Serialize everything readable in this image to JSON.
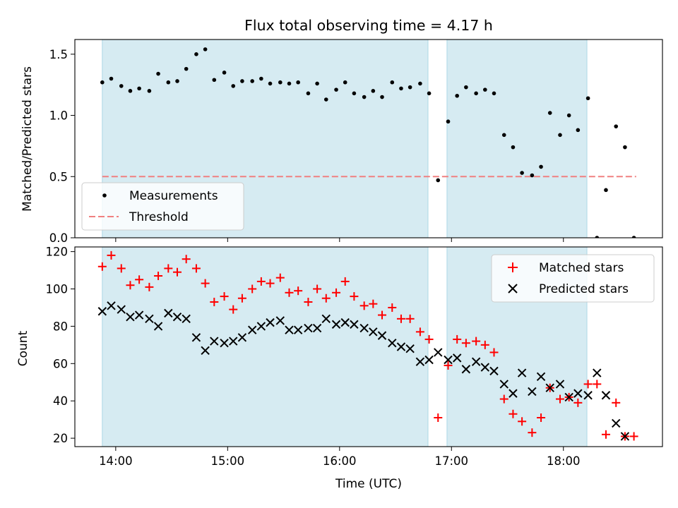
{
  "title": "Flux total observing time = 4.17 h",
  "colors": {
    "shade": "#add8e6",
    "measurement": "#000000",
    "threshold": "#f08080",
    "matched": "#ff0000",
    "predicted": "#000000"
  },
  "chart_data": [
    {
      "type": "scatter",
      "ylabel": "Matched/Predicted stars",
      "ylim": [
        0,
        1.62
      ],
      "yticks": [
        0.0,
        0.5,
        1.0,
        1.5
      ],
      "ytick_labels": [
        "0.0",
        "0.5",
        "1.0",
        "1.5"
      ],
      "xlim": [
        13.635,
        18.885
      ],
      "xticks": [
        14,
        15,
        16,
        17,
        18
      ],
      "legend": {
        "position": "lower-left",
        "entries": [
          "Measurements",
          "Threshold"
        ]
      },
      "shaded_intervals": [
        [
          13.88,
          16.79
        ],
        [
          16.96,
          18.21
        ]
      ],
      "threshold": {
        "name": "Threshold",
        "y": 0.5,
        "x": [
          13.88,
          18.65
        ]
      },
      "series": [
        {
          "name": "Measurements",
          "marker": "dot",
          "x": [
            13.88,
            13.96,
            14.05,
            14.13,
            14.21,
            14.3,
            14.38,
            14.47,
            14.55,
            14.63,
            14.72,
            14.8,
            14.88,
            14.97,
            15.05,
            15.13,
            15.22,
            15.3,
            15.38,
            15.47,
            15.55,
            15.63,
            15.72,
            15.8,
            15.88,
            15.97,
            16.05,
            16.13,
            16.22,
            16.3,
            16.38,
            16.47,
            16.55,
            16.63,
            16.72,
            16.8,
            16.88,
            16.97,
            17.05,
            17.13,
            17.22,
            17.3,
            17.38,
            17.47,
            17.55,
            17.63,
            17.72,
            17.8,
            17.88,
            17.97,
            18.05,
            18.13,
            18.22,
            18.3,
            18.38,
            18.47,
            18.55,
            18.63
          ],
          "y": [
            1.27,
            1.3,
            1.24,
            1.2,
            1.22,
            1.2,
            1.34,
            1.27,
            1.28,
            1.38,
            1.5,
            1.54,
            1.29,
            1.35,
            1.24,
            1.28,
            1.28,
            1.3,
            1.26,
            1.27,
            1.26,
            1.27,
            1.18,
            1.26,
            1.13,
            1.21,
            1.27,
            1.18,
            1.15,
            1.2,
            1.15,
            1.27,
            1.22,
            1.23,
            1.26,
            1.18,
            0.47,
            0.95,
            1.16,
            1.23,
            1.18,
            1.21,
            1.18,
            0.84,
            0.74,
            0.53,
            0.51,
            0.58,
            1.02,
            0.84,
            1.0,
            0.88,
            1.14,
            0.0,
            0.39,
            0.91,
            0.74,
            0.0
          ]
        }
      ]
    },
    {
      "type": "scatter",
      "xlabel": "Time (UTC)",
      "ylabel": "Count",
      "ylim": [
        15.5,
        122.5
      ],
      "yticks": [
        20,
        40,
        60,
        80,
        100,
        120
      ],
      "ytick_labels": [
        "20",
        "40",
        "60",
        "80",
        "100",
        "120"
      ],
      "xlim": [
        13.635,
        18.885
      ],
      "xticks": [
        14,
        15,
        16,
        17,
        18
      ],
      "xtick_labels": [
        "14:00",
        "15:00",
        "16:00",
        "17:00",
        "18:00"
      ],
      "legend": {
        "position": "top-right",
        "entries": [
          "Matched stars",
          "Predicted stars"
        ]
      },
      "shaded_intervals": [
        [
          13.88,
          16.79
        ],
        [
          16.96,
          18.21
        ]
      ],
      "series": [
        {
          "name": "Matched stars",
          "marker": "plus",
          "x": [
            13.88,
            13.96,
            14.05,
            14.13,
            14.21,
            14.3,
            14.38,
            14.47,
            14.55,
            14.63,
            14.72,
            14.8,
            14.88,
            14.97,
            15.05,
            15.13,
            15.22,
            15.3,
            15.38,
            15.47,
            15.55,
            15.63,
            15.72,
            15.8,
            15.88,
            15.97,
            16.05,
            16.13,
            16.22,
            16.3,
            16.38,
            16.47,
            16.55,
            16.63,
            16.72,
            16.8,
            16.88,
            16.97,
            17.05,
            17.13,
            17.22,
            17.3,
            17.38,
            17.47,
            17.55,
            17.63,
            17.72,
            17.8,
            17.88,
            17.97,
            18.05,
            18.13,
            18.22,
            18.3,
            18.38,
            18.47,
            18.55,
            18.63
          ],
          "y": [
            112,
            118,
            111,
            102,
            105,
            101,
            107,
            111,
            109,
            116,
            111,
            103,
            93,
            96,
            89,
            95,
            100,
            104,
            103,
            106,
            98,
            99,
            93,
            100,
            95,
            98,
            104,
            96,
            91,
            92,
            86,
            90,
            84,
            84,
            77,
            73,
            31,
            59,
            73,
            71,
            72,
            70,
            66,
            41,
            33,
            29,
            23,
            31,
            47,
            41,
            42,
            39,
            49,
            49,
            22,
            39,
            21,
            21
          ]
        },
        {
          "name": "Predicted stars",
          "marker": "x",
          "x": [
            13.88,
            13.96,
            14.05,
            14.13,
            14.21,
            14.3,
            14.38,
            14.47,
            14.55,
            14.63,
            14.72,
            14.8,
            14.88,
            14.97,
            15.05,
            15.13,
            15.22,
            15.3,
            15.38,
            15.47,
            15.55,
            15.63,
            15.72,
            15.8,
            15.88,
            15.97,
            16.05,
            16.13,
            16.22,
            16.3,
            16.38,
            16.47,
            16.55,
            16.63,
            16.72,
            16.8,
            16.88,
            16.97,
            17.05,
            17.13,
            17.22,
            17.3,
            17.38,
            17.47,
            17.55,
            17.63,
            17.72,
            17.8,
            17.88,
            17.97,
            18.05,
            18.13,
            18.22,
            18.3,
            18.38,
            18.47,
            18.55
          ],
          "y": [
            88,
            91,
            89,
            85,
            86,
            84,
            80,
            87,
            85,
            84,
            74,
            67,
            72,
            71,
            72,
            74,
            78,
            80,
            82,
            83,
            78,
            78,
            79,
            79,
            84,
            81,
            82,
            81,
            79,
            77,
            75,
            71,
            69,
            68,
            61,
            62,
            66,
            62,
            63,
            57,
            61,
            58,
            56,
            49,
            44,
            55,
            45,
            53,
            47,
            49,
            42,
            44,
            43,
            55,
            43,
            28,
            21
          ]
        }
      ]
    }
  ]
}
